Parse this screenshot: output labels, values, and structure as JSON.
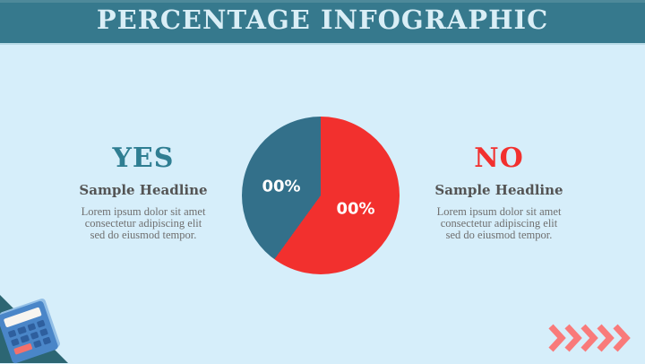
{
  "header": {
    "title": "PERCENTAGE INFOGRAPHIC"
  },
  "left_panel": {
    "heading": "YES",
    "subheading": "Sample Headline",
    "body_lines": [
      "Lorem ipsum dolor sit amet",
      "consectetur adipiscing elit",
      "sed do eiusmod tempor."
    ]
  },
  "right_panel": {
    "heading": "NO",
    "subheading": "Sample Headline",
    "body_lines": [
      "Lorem ipsum dolor sit amet",
      "consectetur adipiscing elit",
      "sed do eiusmod tempor."
    ]
  },
  "chart_data": {
    "type": "pie",
    "title": "PERCENTAGE INFOGRAPHIC",
    "legend": "none",
    "start_angle_deg": 0,
    "direction": "clockwise",
    "segments": [
      {
        "label": "NO",
        "display_value": "00%",
        "percent": 60,
        "color": "#f2302e"
      },
      {
        "label": "YES",
        "display_value": "00%",
        "percent": 40,
        "color": "#33708a"
      }
    ]
  },
  "colors": {
    "header_bg": "#36798d",
    "header_text": "#d9eef6",
    "background": "#d6eefa",
    "yes_accent": "#2f7e92",
    "no_accent": "#f2302e",
    "subheading_text": "#545454",
    "body_text": "#6f6f6f",
    "pie_label": "#ffffff",
    "corner_triangle": "#2c6673",
    "chevron": "#f97a7a",
    "calc_body": "#4a86c8",
    "calc_display": "#f7f5f0",
    "calc_button": "#2e5f9e",
    "calc_button_accent": "#f4716c"
  },
  "decorations": {
    "chevron_count": 5
  }
}
